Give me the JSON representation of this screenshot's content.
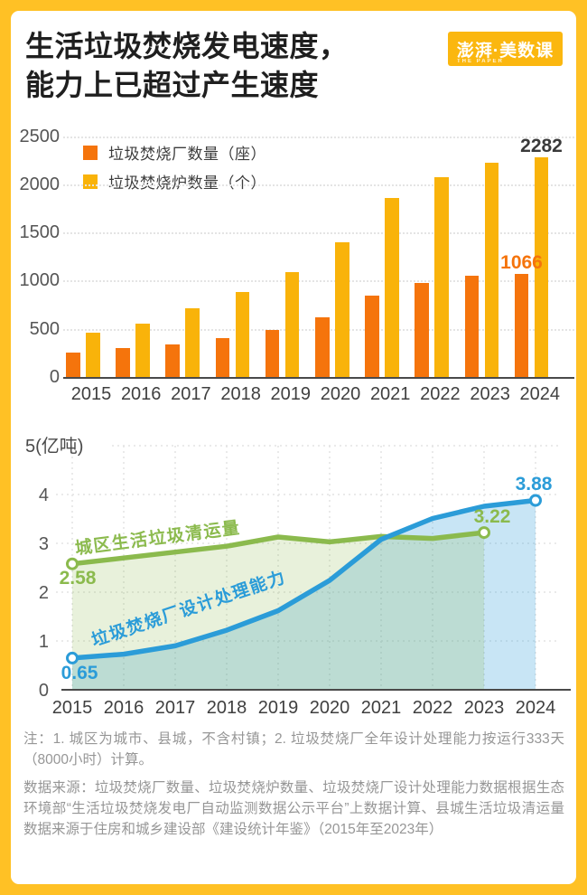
{
  "header": {
    "title_line1": "生活垃圾焚烧发电速度，",
    "title_line2": "能力上已超过产生速度",
    "logo_text": "澎湃·美数课",
    "logo_sub": "THE PAPER"
  },
  "colors": {
    "frame_yellow": "#FFC125",
    "logo_yellow": "#FBB70F",
    "plants_orange": "#F5740C",
    "furnace_yellow": "#F9B30A",
    "green": "#8BBA4D",
    "blue": "#2B9CD8",
    "axis_text": "#555555",
    "dark_label": "#3a3a3a",
    "grid_gray": "#E4E4E4",
    "note_gray": "#969696"
  },
  "chart_data": [
    {
      "type": "bar",
      "categories": [
        "2015",
        "2016",
        "2017",
        "2018",
        "2019",
        "2020",
        "2021",
        "2022",
        "2023",
        "2024"
      ],
      "series": [
        {
          "name": "垃圾焚烧厂数量（座）",
          "color_key": "plants_orange",
          "values": [
            255,
            300,
            335,
            405,
            490,
            620,
            845,
            975,
            1050,
            1066
          ]
        },
        {
          "name": "垃圾焚烧炉数量（个）",
          "color_key": "furnace_yellow",
          "values": [
            460,
            550,
            710,
            880,
            1090,
            1395,
            1855,
            2070,
            2225,
            2282
          ]
        }
      ],
      "ylim": [
        0,
        2500
      ],
      "yticks": [
        0,
        500,
        1000,
        1500,
        2000,
        2500
      ],
      "grid": "horizontal-dotted",
      "legend_position": "top-left-inside",
      "labels": [
        {
          "text": "2282",
          "series": 1,
          "category": "2024",
          "color_key": "dark_label"
        },
        {
          "text": "1066",
          "series": 0,
          "category": "2024",
          "color_key": "plants_orange"
        }
      ]
    },
    {
      "type": "line",
      "x": [
        "2015",
        "2016",
        "2017",
        "2018",
        "2019",
        "2020",
        "2021",
        "2022",
        "2023",
        "2024"
      ],
      "y_top_label": "5(亿吨)",
      "ylim": [
        0,
        5
      ],
      "yticks": [
        0,
        1,
        2,
        3,
        4
      ],
      "grid": "both-dotted",
      "series": [
        {
          "name": "城区生活垃圾清运量",
          "color_key": "green",
          "area": true,
          "values": [
            2.58,
            2.7,
            2.82,
            2.94,
            3.13,
            3.03,
            3.14,
            3.1,
            3.22
          ],
          "first_label": "2.58",
          "last_label": "3.22"
        },
        {
          "name": "垃圾焚烧厂设计处理能力",
          "color_key": "blue",
          "area": true,
          "values": [
            0.65,
            0.73,
            0.9,
            1.22,
            1.62,
            2.24,
            3.08,
            3.51,
            3.76,
            3.88
          ],
          "first_label": "0.65",
          "last_label": "3.88"
        }
      ]
    }
  ],
  "notes": {
    "note": "注：1. 城区为城市、县城，不含村镇；2. 垃圾焚烧厂全年设计处理能力按运行333天（8000小时）计算。",
    "source": "数据来源：垃圾焚烧厂数量、垃圾焚烧炉数量、垃圾焚烧厂设计处理能力数据根据生态环境部“生活垃圾焚烧发电厂自动监测数据公示平台”上数据计算、县城生活垃圾清运量数据来源于住房和城乡建设部《建设统计年鉴》（2015年至2023年）"
  }
}
